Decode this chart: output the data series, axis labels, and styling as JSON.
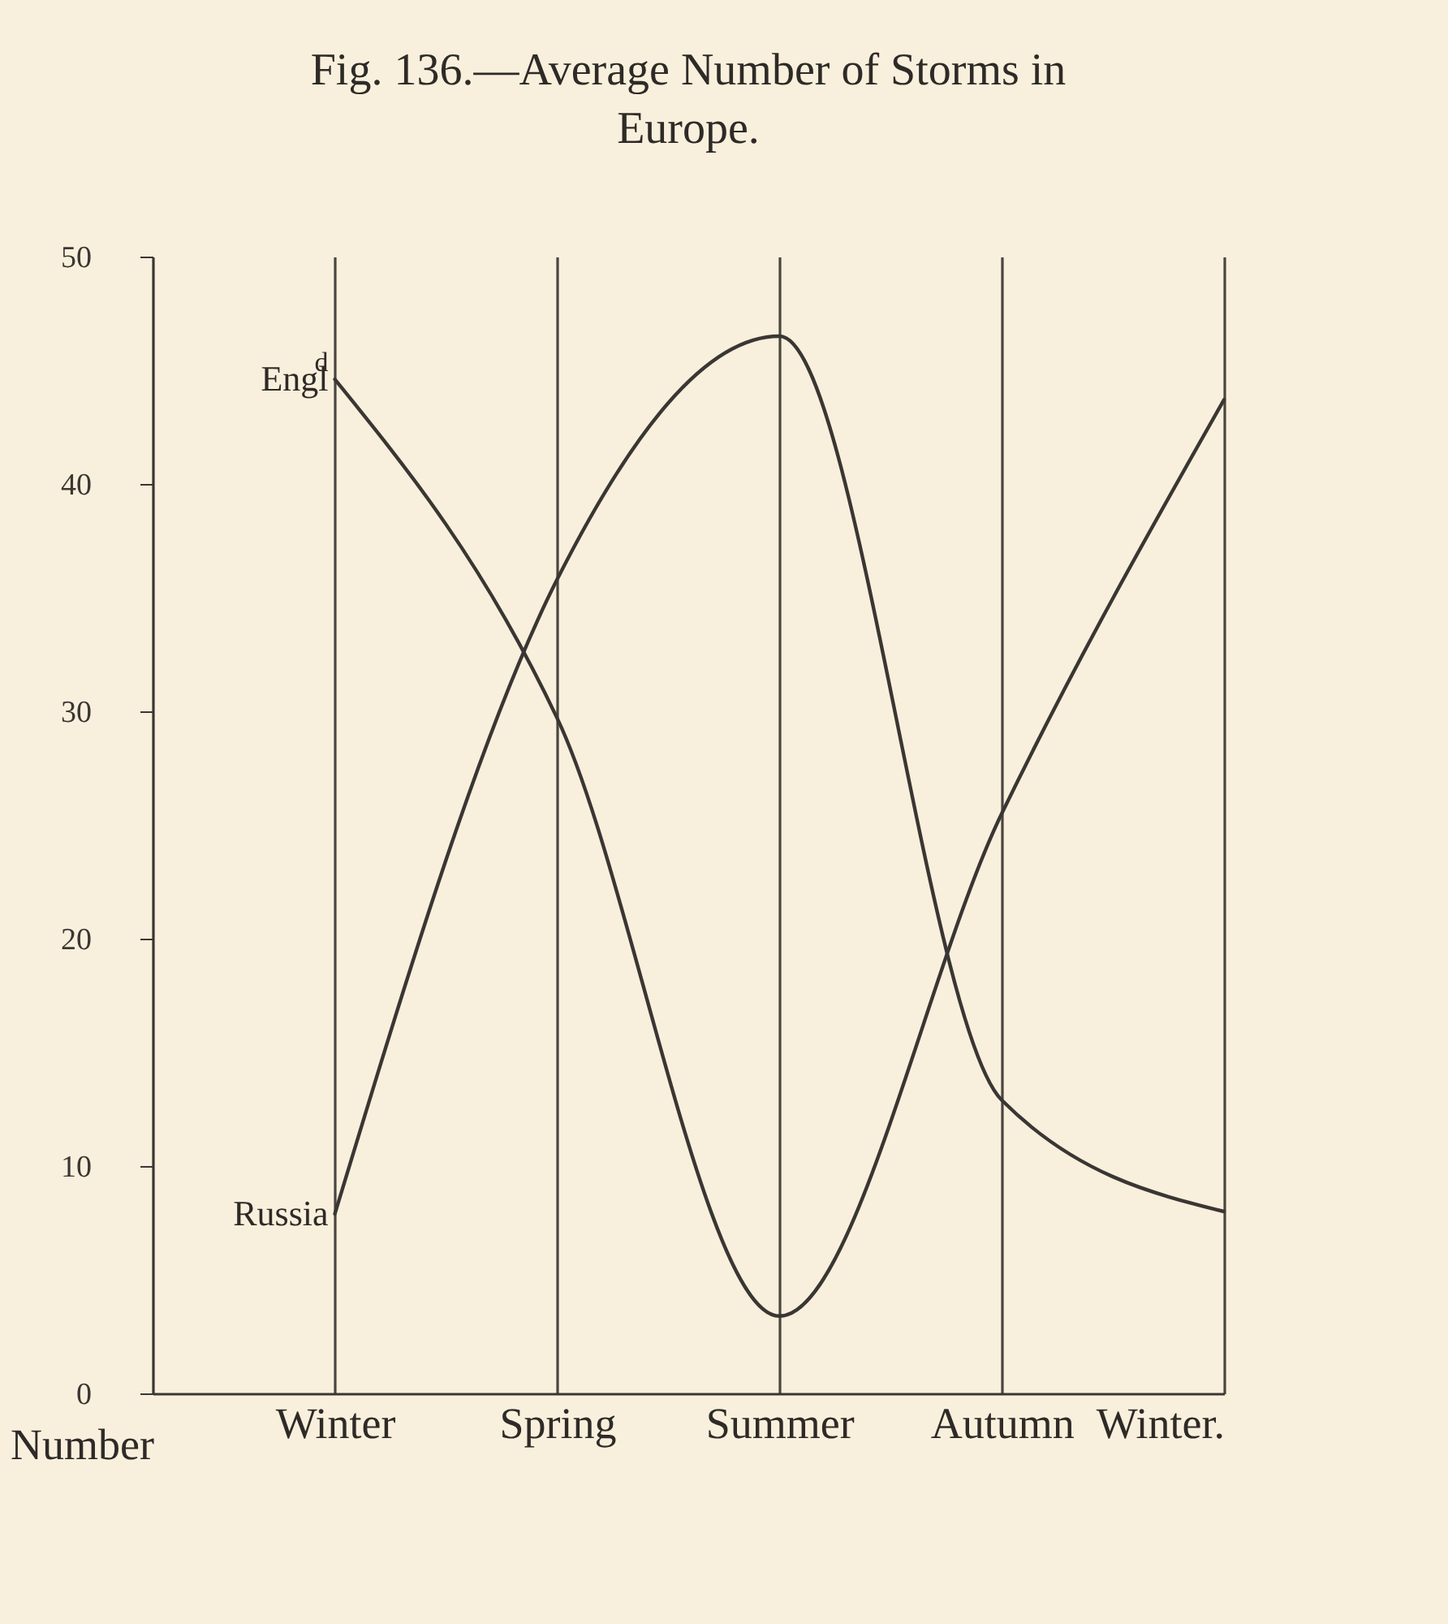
{
  "chart_data": {
    "type": "line",
    "title": "Fig. 136.—Average Number of Storms in Europe.",
    "ylabel": "Number",
    "categories": [
      "Winter",
      "Spring",
      "Summer",
      "Autumn",
      "Winter."
    ],
    "series": [
      {
        "name": "Engl$^{d}$",
        "color": "#3a3633",
        "values": [
          44.6,
          29.7,
          3.4,
          25.5,
          43.7
        ]
      },
      {
        "name": "Russia",
        "color": "#3a3633",
        "values": [
          7.9,
          35.8,
          46.5,
          12.9,
          8.0
        ]
      }
    ],
    "ylim": [
      0,
      50
    ],
    "yticks": [
      0,
      10,
      20,
      30,
      40,
      50
    ],
    "grid": "x",
    "legend": false,
    "line_style": "solid"
  }
}
